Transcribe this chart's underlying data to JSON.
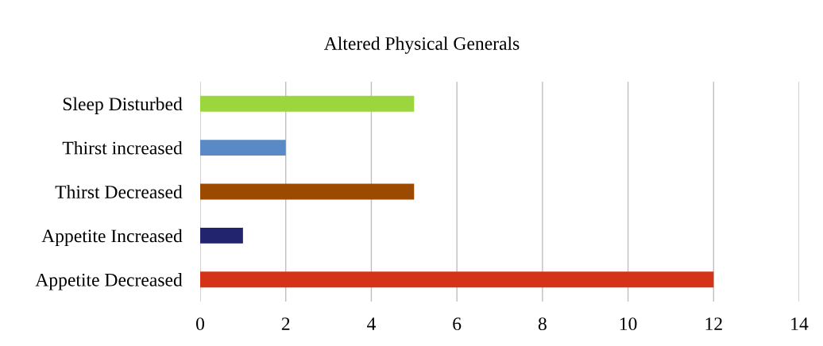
{
  "chart_data": {
    "type": "bar",
    "orientation": "horizontal",
    "title": "Altered Physical Generals",
    "categories": [
      "Sleep Disturbed",
      "Thirst increased",
      "Thirst Decreased",
      "Appetite Increased",
      "Appetite Decreased"
    ],
    "values": [
      5,
      2,
      5,
      1,
      12
    ],
    "colors": [
      "#9bd63f",
      "#5a8ac6",
      "#9c4a00",
      "#22256e",
      "#d53318"
    ],
    "xlim": [
      0,
      14
    ],
    "xticks": [
      0,
      2,
      4,
      6,
      8,
      10,
      12,
      14
    ],
    "grid": "x"
  }
}
